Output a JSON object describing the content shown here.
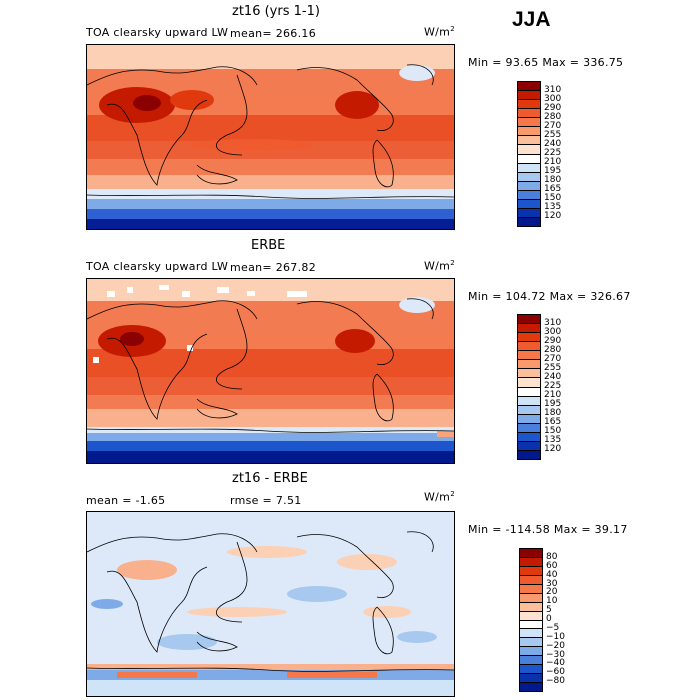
{
  "season": "JJA",
  "panels": [
    {
      "title": "zt16 (yrs 1-1)",
      "left_label": "TOA clearsky upward LW",
      "mean_label": "mean= 266.16",
      "units": "W/m",
      "units_sup": "2",
      "minmax": "Min =  93.65 Max = 336.75",
      "colorbar": {
        "levels": [
          "310",
          "300",
          "290",
          "280",
          "270",
          "255",
          "240",
          "225",
          "210",
          "195",
          "180",
          "165",
          "150",
          "135",
          "120"
        ],
        "colors": [
          "#8b0000",
          "#c41b00",
          "#e0390e",
          "#ef5a2e",
          "#f5784b",
          "#f99a6e",
          "#fbbf9b",
          "#fde3cf",
          "#ffffff",
          "#cfe4f7",
          "#a7c9f0",
          "#7eaae8",
          "#4a7fdc",
          "#1d55cc",
          "#0b32ad",
          "#00198c"
        ]
      }
    },
    {
      "title": "ERBE",
      "left_label": "TOA clearsky upward LW",
      "mean_label": "mean= 267.82",
      "units": "W/m",
      "units_sup": "2",
      "minmax": "Min = 104.72 Max = 326.67",
      "colorbar": {
        "levels": [
          "310",
          "300",
          "290",
          "280",
          "270",
          "255",
          "240",
          "225",
          "210",
          "195",
          "180",
          "165",
          "150",
          "135",
          "120"
        ],
        "colors": [
          "#8b0000",
          "#c41b00",
          "#e0390e",
          "#ef5a2e",
          "#f5784b",
          "#f99a6e",
          "#fbbf9b",
          "#fde3cf",
          "#ffffff",
          "#cfe4f7",
          "#a7c9f0",
          "#7eaae8",
          "#4a7fdc",
          "#1d55cc",
          "#0b32ad",
          "#00198c"
        ]
      }
    },
    {
      "title": "zt16 - ERBE",
      "left_label": "mean =   -1.65",
      "mean_label": "rmse =    7.51",
      "units": "W/m",
      "units_sup": "2",
      "minmax": "Min = -114.58 Max =  39.17",
      "colorbar": {
        "levels": [
          "80",
          "60",
          "40",
          "30",
          "20",
          "10",
          "5",
          "0",
          "−5",
          "−10",
          "−20",
          "−30",
          "−40",
          "−60",
          "−80"
        ],
        "colors": [
          "#8b0000",
          "#c41b00",
          "#e0390e",
          "#ef5a2e",
          "#f5784b",
          "#f99a6e",
          "#fbbf9b",
          "#fde3cf",
          "#ffffff",
          "#cfe4f7",
          "#a7c9f0",
          "#7eaae8",
          "#4a7fdc",
          "#1d55cc",
          "#0b32ad",
          "#00198c"
        ]
      }
    }
  ]
}
